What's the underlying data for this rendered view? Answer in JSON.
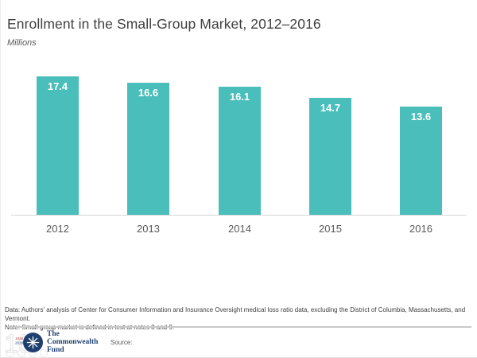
{
  "header": {
    "title": "Enrollment in the Small-Group Market, 2012–2016",
    "subtitle": "Millions"
  },
  "chart_data": {
    "type": "bar",
    "categories": [
      "2012",
      "2013",
      "2014",
      "2015",
      "2016"
    ],
    "values": [
      17.4,
      16.6,
      16.1,
      14.7,
      13.6
    ],
    "title": "Enrollment in the Small-Group Market, 2012–2016",
    "xlabel": "",
    "ylabel": "Millions",
    "ylim": [
      0,
      20
    ],
    "grid": false,
    "legend": false,
    "value_labels_shown": true,
    "bar_color": "#4ABEBB",
    "value_label_color": "#FFFFFF",
    "axis_line_color": "#D9D9D9",
    "tick_label_color": "#595959"
  },
  "footer": {
    "data_note": "Data: Authors' analysis of Center for Consumer Information and Insurance Oversight medical loss ratio data, excluding the District of Columbia, Massachusetts, and Vermont.",
    "method_note": "Note: Small-group market is defined in text at notes 8 and 9.",
    "source_label": "Source:"
  },
  "logo": {
    "org_name_lines": [
      "The",
      "Commonwealth",
      "Fund"
    ],
    "centennial_number": "100",
    "years": [
      "1918",
      "2018"
    ]
  },
  "colors": {
    "bar_teal": "#4ABEBB",
    "title_text": "#3F3F3F",
    "secondary_text": "#595959",
    "logo_navy": "#1E3F6F",
    "axis_line": "#D9D9D9"
  }
}
